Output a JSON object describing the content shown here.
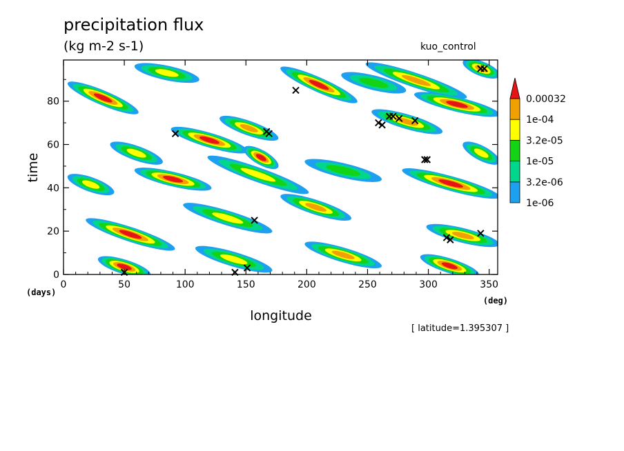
{
  "title": "precipitation flux",
  "units": "(kg m-2 s-1)",
  "run_label": "kuo_control",
  "footnote": "[ latitude=1.395307 ]",
  "chart_data": {
    "type": "heatmap",
    "title": "precipitation flux",
    "subtitle": "(kg m-2 s-1)",
    "xlabel": "longitude",
    "ylabel": "time",
    "x_unit": "(deg)",
    "y_unit": "(days)",
    "xlim": [
      0,
      357
    ],
    "ylim": [
      0,
      99
    ],
    "x_ticks": [
      0,
      50,
      100,
      150,
      200,
      250,
      300,
      350
    ],
    "y_ticks": [
      0,
      20,
      40,
      60,
      80
    ],
    "colorbar": {
      "levels": [
        "1e-06",
        "3.2e-06",
        "1e-05",
        "3.2e-05",
        "1e-04",
        "0.00032"
      ],
      "colors": [
        "#1ea0f0",
        "#00d68c",
        "#14d214",
        "#ffff00",
        "#f0a000",
        "#e61414"
      ]
    },
    "features": [
      {
        "x0": 5,
        "t0": 88,
        "x1": 60,
        "t1": 75,
        "level": 5
      },
      {
        "x0": 40,
        "t0": 60,
        "x1": 80,
        "t1": 52,
        "level": 3
      },
      {
        "x0": 60,
        "t0": 48,
        "x1": 120,
        "t1": 40,
        "level": 5
      },
      {
        "x0": 90,
        "t0": 67,
        "x1": 150,
        "t1": 57,
        "level": 5
      },
      {
        "x0": 130,
        "t0": 72,
        "x1": 175,
        "t1": 63,
        "level": 4
      },
      {
        "x0": 150,
        "t0": 58,
        "x1": 175,
        "t1": 50,
        "level": 5
      },
      {
        "x0": 120,
        "t0": 54,
        "x1": 200,
        "t1": 38,
        "level": 3
      },
      {
        "x0": 180,
        "t0": 95,
        "x1": 240,
        "t1": 80,
        "level": 5
      },
      {
        "x0": 250,
        "t0": 97,
        "x1": 330,
        "t1": 82,
        "level": 4
      },
      {
        "x0": 290,
        "t0": 83,
        "x1": 357,
        "t1": 74,
        "level": 5
      },
      {
        "x0": 255,
        "t0": 75,
        "x1": 310,
        "t1": 66,
        "level": 4
      },
      {
        "x0": 20,
        "t0": 25,
        "x1": 90,
        "t1": 12,
        "level": 5
      },
      {
        "x0": 100,
        "t0": 32,
        "x1": 170,
        "t1": 20,
        "level": 3
      },
      {
        "x0": 180,
        "t0": 36,
        "x1": 235,
        "t1": 26,
        "level": 4
      },
      {
        "x0": 200,
        "t0": 52,
        "x1": 260,
        "t1": 44,
        "level": 2
      },
      {
        "x0": 280,
        "t0": 48,
        "x1": 357,
        "t1": 36,
        "level": 5
      },
      {
        "x0": 300,
        "t0": 22,
        "x1": 357,
        "t1": 14,
        "level": 4
      },
      {
        "x0": 295,
        "t0": 8,
        "x1": 340,
        "t1": 0,
        "level": 5
      },
      {
        "x0": 30,
        "t0": 7,
        "x1": 70,
        "t1": 0,
        "level": 5
      },
      {
        "x0": 110,
        "t0": 12,
        "x1": 170,
        "t1": 2,
        "level": 3
      },
      {
        "x0": 200,
        "t0": 14,
        "x1": 260,
        "t1": 4,
        "level": 4
      },
      {
        "x0": 5,
        "t0": 45,
        "x1": 40,
        "t1": 38,
        "level": 3
      },
      {
        "x0": 230,
        "t0": 92,
        "x1": 280,
        "t1": 85,
        "level": 2
      },
      {
        "x0": 330,
        "t0": 98,
        "x1": 357,
        "t1": 92,
        "level": 4
      },
      {
        "x0": 60,
        "t0": 96,
        "x1": 110,
        "t1": 90,
        "level": 3
      },
      {
        "x0": 330,
        "t0": 60,
        "x1": 357,
        "t1": 52,
        "level": 3
      }
    ],
    "markers": [
      {
        "x": 50,
        "t": 1
      },
      {
        "x": 141,
        "t": 1
      },
      {
        "x": 151,
        "t": 3
      },
      {
        "x": 157,
        "t": 25
      },
      {
        "x": 92,
        "t": 65
      },
      {
        "x": 167,
        "t": 66
      },
      {
        "x": 169,
        "t": 65
      },
      {
        "x": 191,
        "t": 85
      },
      {
        "x": 259,
        "t": 70
      },
      {
        "x": 262,
        "t": 69
      },
      {
        "x": 268,
        "t": 73
      },
      {
        "x": 271,
        "t": 73
      },
      {
        "x": 276,
        "t": 72
      },
      {
        "x": 289,
        "t": 71
      },
      {
        "x": 297,
        "t": 53
      },
      {
        "x": 299,
        "t": 53
      },
      {
        "x": 315,
        "t": 17
      },
      {
        "x": 318,
        "t": 16
      },
      {
        "x": 343,
        "t": 19
      },
      {
        "x": 343,
        "t": 95
      },
      {
        "x": 346,
        "t": 95
      }
    ]
  }
}
